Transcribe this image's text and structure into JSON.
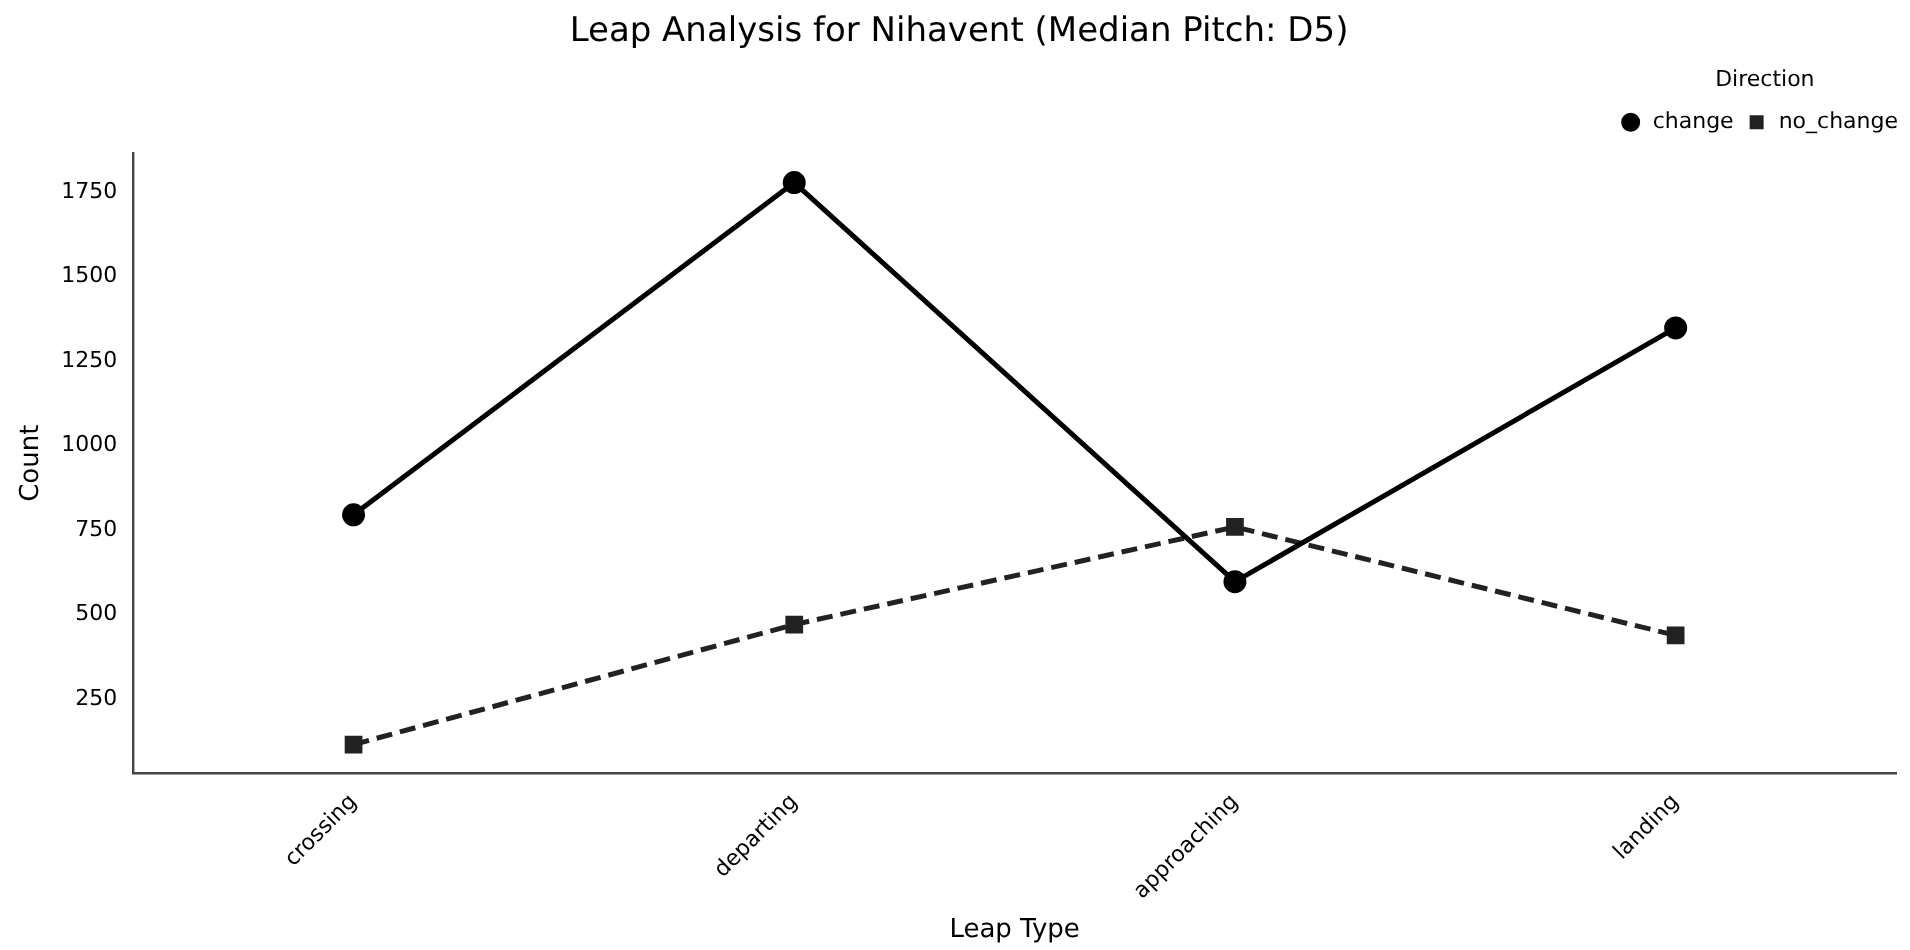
{
  "chart_data": {
    "type": "line",
    "title": "Leap Analysis for Nihavent (Median Pitch: D5)",
    "xlabel": "Leap Type",
    "ylabel": "Count",
    "categories": [
      "crossing",
      "departing",
      "approaching",
      "landing"
    ],
    "series": [
      {
        "name": "change",
        "color": "#000000",
        "values": [
          795,
          1778,
          597,
          1348
        ],
        "marker": "circle",
        "line_style": "solid"
      },
      {
        "name": "no_change",
        "color": "#222222",
        "values": [
          115,
          470,
          759,
          438
        ],
        "marker": "square",
        "line_style": "dashed"
      }
    ],
    "ylim": [
      30,
      1865
    ],
    "yticks": [
      250,
      500,
      750,
      1000,
      1250,
      1500,
      1750
    ],
    "grid": false,
    "legend": "top right",
    "legend_title": "Direction"
  }
}
